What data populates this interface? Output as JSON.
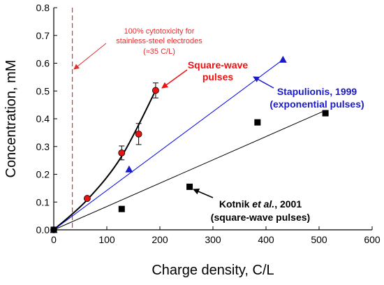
{
  "chart_data": {
    "type": "scatter",
    "xlabel": "Charge density, C/L",
    "ylabel": "Concentration, mM",
    "xlim": [
      0,
      600
    ],
    "ylim": [
      0,
      0.8
    ],
    "x_ticks": [
      "0",
      "100",
      "200",
      "300",
      "400",
      "500",
      "600"
    ],
    "y_ticks": [
      "0.0",
      "0.1",
      "0.2",
      "0.3",
      "0.4",
      "0.5",
      "0.6",
      "0.7",
      "0.8"
    ],
    "grid": false,
    "series": [
      {
        "marker": "circle",
        "color": "#ee1111",
        "points": [
          {
            "x": 0,
            "y": 0.0
          },
          {
            "x": 63,
            "y": 0.113
          },
          {
            "x": 128,
            "y": 0.277,
            "err": 0.025
          },
          {
            "x": 160,
            "y": 0.345,
            "err": 0.038
          },
          {
            "x": 192,
            "y": 0.502,
            "err": 0.027
          }
        ],
        "fit": {
          "style": "curve",
          "color": "#000000",
          "points": [
            [
              0,
              0
            ],
            [
              64,
              0.11
            ],
            [
              128,
              0.265
            ],
            [
              192,
              0.502
            ]
          ]
        }
      },
      {
        "marker": "triangle",
        "color": "#1a1acc",
        "points": [
          {
            "x": 0,
            "y": 0.0
          },
          {
            "x": 142,
            "y": 0.218
          },
          {
            "x": 432,
            "y": 0.613
          }
        ],
        "fit": {
          "style": "line",
          "color": "#0000ee",
          "points": [
            [
              0,
              0
            ],
            [
              432,
              0.613
            ]
          ]
        }
      },
      {
        "marker": "square",
        "color": "#000000",
        "points": [
          {
            "x": 0,
            "y": 0.0
          },
          {
            "x": 128,
            "y": 0.075
          },
          {
            "x": 256,
            "y": 0.155
          },
          {
            "x": 384,
            "y": 0.387
          },
          {
            "x": 512,
            "y": 0.42
          }
        ],
        "fit": {
          "style": "line",
          "color": "#000000",
          "points": [
            [
              0,
              0
            ],
            [
              512,
              0.43
            ]
          ]
        }
      }
    ],
    "reference_line": {
      "x": 35,
      "color": "#e03030",
      "style": "dashed"
    },
    "annotations": {
      "cytotoxicity": {
        "lines": [
          "100% cytotoxicity for",
          "stainless-steel electrodes",
          "(≈35 C/L)"
        ],
        "color": "#e03030"
      },
      "square_wave": {
        "lines": [
          "Square-wave",
          "pulses"
        ],
        "color": "#ee1111"
      },
      "stapulionis": {
        "lines": [
          "Stapulionis, 1999",
          "(exponential pulses)"
        ],
        "color": "#1a1acc"
      },
      "kotnik": {
        "line1_a": "Kotnik ",
        "line1_b": "et al.",
        "line1_c": ", 2001",
        "line2": "(square-wave pulses)",
        "color": "#000000"
      }
    }
  }
}
